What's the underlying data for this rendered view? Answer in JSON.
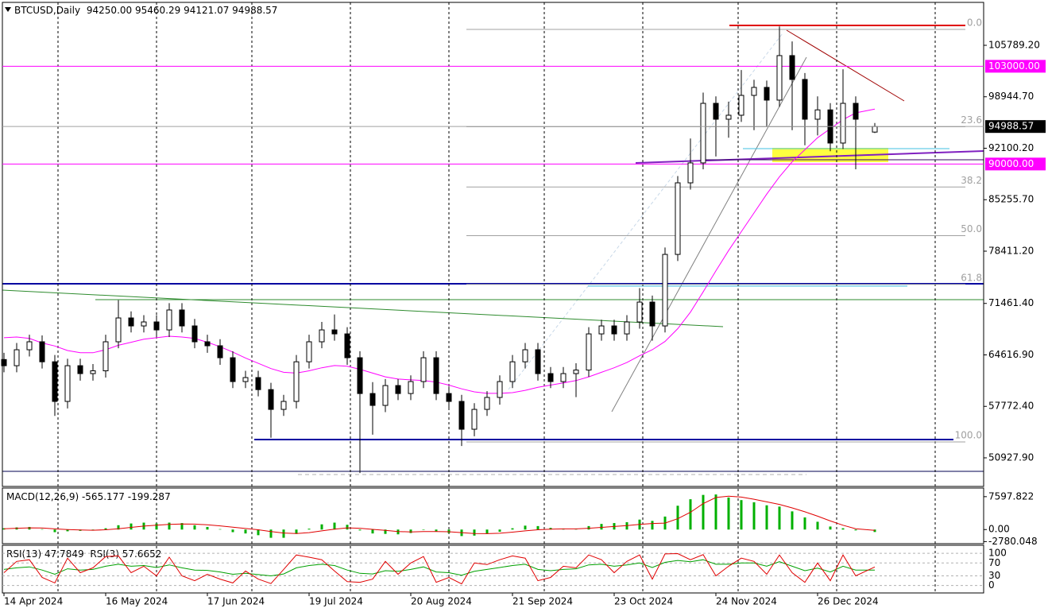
{
  "chart_data": {
    "type": "candlestick",
    "symbol": "BTCUSD,Daily",
    "ohlc_labels": [
      "94250.00",
      "95460.29",
      "94121.07",
      "94988.57"
    ],
    "x": [
      "2024-04-14",
      "2024-04-18",
      "2024-04-22",
      "2024-04-26",
      "2024-04-30",
      "2024-05-04",
      "2024-05-08",
      "2024-05-12",
      "2024-05-16",
      "2024-05-20",
      "2024-05-24",
      "2024-05-28",
      "2024-06-01",
      "2024-06-05",
      "2024-06-09",
      "2024-06-13",
      "2024-06-17",
      "2024-06-21",
      "2024-06-25",
      "2024-06-29",
      "2024-07-03",
      "2024-07-07",
      "2024-07-11",
      "2024-07-15",
      "2024-07-19",
      "2024-07-23",
      "2024-07-27",
      "2024-07-31",
      "2024-08-04",
      "2024-08-08",
      "2024-08-12",
      "2024-08-16",
      "2024-08-20",
      "2024-08-24",
      "2024-08-28",
      "2024-09-01",
      "2024-09-05",
      "2024-09-09",
      "2024-09-13",
      "2024-09-17",
      "2024-09-21",
      "2024-09-25",
      "2024-09-29",
      "2024-10-03",
      "2024-10-07",
      "2024-10-11",
      "2024-10-15",
      "2024-10-19",
      "2024-10-23",
      "2024-10-27",
      "2024-10-31",
      "2024-11-04",
      "2024-11-08",
      "2024-11-12",
      "2024-11-16",
      "2024-11-20",
      "2024-11-24",
      "2024-11-28",
      "2024-12-02",
      "2024-12-06",
      "2024-12-10",
      "2024-12-14",
      "2024-12-18",
      "2024-12-22",
      "2024-12-26",
      "2024-12-30",
      "2025-01-03",
      "2025-01-07",
      "2025-01-13"
    ],
    "ohlc": [
      [
        64000,
        64900,
        62300,
        63180
      ],
      [
        63180,
        66200,
        62300,
        65300
      ],
      [
        65300,
        67300,
        64400,
        66360
      ],
      [
        66360,
        67200,
        62800,
        63700
      ],
      [
        63700,
        64600,
        56500,
        58430
      ],
      [
        58430,
        64100,
        57500,
        63180
      ],
      [
        63180,
        64100,
        61200,
        62130
      ],
      [
        62130,
        63400,
        61200,
        62500
      ],
      [
        62500,
        67300,
        61600,
        66360
      ],
      [
        66360,
        71900,
        65500,
        69530
      ],
      [
        69530,
        70400,
        67600,
        68470
      ],
      [
        68470,
        69900,
        67600,
        69000
      ],
      [
        69000,
        69900,
        67000,
        67940
      ],
      [
        67940,
        71500,
        67000,
        70590
      ],
      [
        70590,
        71500,
        67600,
        68470
      ],
      [
        68470,
        69400,
        65500,
        66360
      ],
      [
        66360,
        67300,
        64900,
        65830
      ],
      [
        65830,
        66700,
        63300,
        64240
      ],
      [
        64240,
        65100,
        60200,
        61070
      ],
      [
        61070,
        62500,
        60200,
        61600
      ],
      [
        61600,
        62500,
        59100,
        60000
      ],
      [
        60000,
        60900,
        53600,
        57370
      ],
      [
        57370,
        59300,
        56500,
        58430
      ],
      [
        58430,
        64600,
        57500,
        63700
      ],
      [
        63700,
        67300,
        62800,
        66360
      ],
      [
        66360,
        69000,
        65500,
        67940
      ],
      [
        67940,
        70000,
        66500,
        67410
      ],
      [
        67410,
        68300,
        63300,
        64240
      ],
      [
        64240,
        65100,
        48900,
        59480
      ],
      [
        59480,
        61000,
        54000,
        57900
      ],
      [
        57900,
        61400,
        57000,
        60540
      ],
      [
        60540,
        61400,
        58600,
        59480
      ],
      [
        59480,
        61900,
        58600,
        61070
      ],
      [
        61070,
        65100,
        60200,
        64240
      ],
      [
        64240,
        65100,
        58600,
        59480
      ],
      [
        59480,
        60400,
        57500,
        58430
      ],
      [
        58430,
        59300,
        52500,
        54730
      ],
      [
        54730,
        58200,
        53800,
        57370
      ],
      [
        57370,
        59800,
        56500,
        58960
      ],
      [
        58960,
        61900,
        58000,
        61070
      ],
      [
        61070,
        64600,
        60200,
        63700
      ],
      [
        63700,
        66200,
        62800,
        65300
      ],
      [
        65300,
        66200,
        61200,
        62130
      ],
      [
        62130,
        63000,
        60200,
        61070
      ],
      [
        61070,
        63000,
        60200,
        62130
      ],
      [
        62130,
        63500,
        59000,
        62600
      ],
      [
        62600,
        68300,
        61700,
        67410
      ],
      [
        67410,
        69300,
        66500,
        68470
      ],
      [
        68470,
        69300,
        66500,
        67410
      ],
      [
        67410,
        69900,
        66500,
        69000
      ],
      [
        69000,
        73500,
        68100,
        71640
      ],
      [
        71640,
        72500,
        66500,
        68470
      ],
      [
        68470,
        78900,
        67600,
        77980
      ],
      [
        77980,
        88400,
        77100,
        87500
      ],
      [
        87500,
        93400,
        86600,
        90150
      ],
      [
        90150,
        99500,
        89300,
        98070
      ],
      [
        98070,
        99000,
        91000,
        95960
      ],
      [
        95960,
        98300,
        93500,
        96490
      ],
      [
        96490,
        102500,
        95600,
        99130
      ],
      [
        99130,
        101200,
        94500,
        100190
      ],
      [
        100190,
        101100,
        95000,
        98500
      ],
      [
        98500,
        108300,
        97600,
        104420
      ],
      [
        104420,
        106300,
        94500,
        101250
      ],
      [
        101250,
        102100,
        92500,
        95960
      ],
      [
        95960,
        99000,
        93800,
        97200
      ],
      [
        97200,
        98100,
        91700,
        92790
      ],
      [
        92790,
        102600,
        92000,
        98070
      ],
      [
        98070,
        99000,
        89300,
        95960
      ],
      [
        94250,
        95460.29,
        94121.07,
        94988.57
      ]
    ],
    "up_color": "#ffffff",
    "down_color": "#000000",
    "ma": {
      "color": "#ff00ff",
      "values": [
        66900,
        67000,
        66800,
        66200,
        65800,
        65200,
        64900,
        64900,
        65300,
        65900,
        66300,
        66700,
        66900,
        67100,
        67000,
        66800,
        66300,
        65700,
        65000,
        64200,
        63500,
        62800,
        62300,
        62200,
        62500,
        62900,
        63200,
        63100,
        62700,
        62200,
        61700,
        61400,
        61300,
        61200,
        61000,
        60600,
        60100,
        59700,
        59500,
        59500,
        59600,
        59900,
        60300,
        60600,
        60900,
        61200,
        61700,
        62300,
        62900,
        63600,
        64500,
        65300,
        66400,
        68100,
        70300,
        73000,
        75800,
        78500,
        81000,
        83500,
        86000,
        88300,
        90300,
        91900,
        93500,
        94700,
        95900,
        96800,
        97300
      ]
    },
    "xlim": [
      "2024-04-14",
      "2025-02-16"
    ],
    "xticks": [
      {
        "value": "2024-04-14",
        "label": "14 Apr 2024"
      },
      {
        "value": "2024-05-16",
        "label": "16 May 2024"
      },
      {
        "value": "2024-06-17",
        "label": "17 Jun 2024"
      },
      {
        "value": "2024-07-19",
        "label": "19 Jul 2024"
      },
      {
        "value": "2024-08-20",
        "label": "20 Aug 2024"
      },
      {
        "value": "2024-09-21",
        "label": "21 Sep 2024"
      },
      {
        "value": "2024-10-23",
        "label": "23 Oct 2024"
      },
      {
        "value": "2024-11-24",
        "label": "24 Nov 2024"
      },
      {
        "value": "2024-12-26",
        "label": "26 Dec 2024"
      }
    ],
    "xgrid": [
      "2024-05-01",
      "2024-06-01",
      "2024-07-01",
      "2024-08-01",
      "2024-09-01",
      "2024-10-01",
      "2024-11-01",
      "2024-12-01",
      "2025-01-01",
      "2025-02-01"
    ],
    "ylim": [
      47122,
      111497
    ],
    "yticks": [
      {
        "value": 105789.2,
        "label": "105789.20"
      },
      {
        "value": 98944.7,
        "label": "98944.70"
      },
      {
        "value": 92100.2,
        "label": "92100.20"
      },
      {
        "value": 85255.7,
        "label": "85255.70"
      },
      {
        "value": 78411.2,
        "label": "78411.20"
      },
      {
        "value": 71461.4,
        "label": "71461.40"
      },
      {
        "value": 64616.9,
        "label": "64616.90"
      },
      {
        "value": 57772.4,
        "label": "57772.40"
      },
      {
        "value": 50927.9,
        "label": "50927.90"
      }
    ],
    "levels": [
      {
        "value": 103000,
        "label": "103000.00",
        "color": "#ff00ff"
      },
      {
        "value": 90000,
        "label": "90000.00",
        "color": "#ff00ff"
      }
    ],
    "fib": {
      "high": 107900,
      "low": 53040,
      "color": "#a0a0a0",
      "levels": [
        {
          "value": 0,
          "label": "0.0"
        },
        {
          "value": 23.6,
          "label": "23.6"
        },
        {
          "value": 38.2,
          "label": "38.2"
        },
        {
          "value": 50,
          "label": "50.0"
        },
        {
          "value": 61.8,
          "label": "61.8"
        },
        {
          "value": 100,
          "label": "100.0"
        }
      ]
    },
    "macd": {
      "title": "MACD(12,26,9)",
      "color": "#00b000",
      "signal_color": "#e00000",
      "values": [
        300,
        500,
        600,
        100,
        -600,
        -400,
        -300,
        -200,
        300,
        1000,
        1400,
        1600,
        1400,
        1600,
        1500,
        1000,
        600,
        100,
        -600,
        -900,
        -1300,
        -1900,
        -1900,
        -1000,
        200,
        1200,
        1600,
        1100,
        -200,
        -900,
        -1000,
        -1100,
        -800,
        -100,
        -400,
        -800,
        -1500,
        -1400,
        -1000,
        -500,
        300,
        900,
        800,
        400,
        200,
        100,
        800,
        1300,
        1500,
        1700,
        2300,
        2000,
        3000,
        5500,
        7000,
        8000,
        8100,
        7400,
        6800,
        6300,
        5600,
        5300,
        4200,
        2800,
        1800,
        700,
        300,
        -200,
        -565.177
      ],
      "signal": [
        200,
        300,
        400,
        350,
        150,
        0,
        -100,
        -150,
        -50,
        200,
        500,
        800,
        1000,
        1200,
        1300,
        1250,
        1100,
        850,
        550,
        250,
        -50,
        -450,
        -800,
        -900,
        -700,
        -300,
        100,
        400,
        300,
        50,
        -200,
        -450,
        -550,
        -450,
        -450,
        -500,
        -700,
        -900,
        -950,
        -850,
        -600,
        -300,
        -50,
        100,
        150,
        150,
        300,
        500,
        700,
        900,
        1200,
        1400,
        1500,
        2500,
        4000,
        6000,
        7400,
        7700,
        7500,
        7000,
        6400,
        5800,
        5000,
        4100,
        3100,
        2000,
        1000,
        200,
        -199.287
      ],
      "ylim": [
        -3258,
        9589
      ],
      "yticks": [
        7597.822,
        {
          "value": 0,
          "label": "0.00"
        },
        -2780.048
      ]
    },
    "rsi": {
      "ylim": [
        -23,
        125
      ],
      "yticks": [
        100,
        70,
        30,
        0
      ],
      "series": [
        {
          "name": "RSI(13)",
          "color": "#00a000",
          "values": [
            50,
            55,
            58,
            48,
            35,
            52,
            48,
            50,
            60,
            66,
            60,
            62,
            56,
            64,
            55,
            48,
            47,
            42,
            35,
            38,
            34,
            30,
            36,
            55,
            62,
            66,
            62,
            48,
            38,
            36,
            46,
            44,
            50,
            58,
            42,
            40,
            32,
            44,
            50,
            56,
            62,
            66,
            50,
            46,
            50,
            52,
            64,
            66,
            60,
            64,
            70,
            56,
            72,
            78,
            74,
            80,
            66,
            66,
            70,
            70,
            60,
            74,
            60,
            46,
            54,
            42,
            60,
            48,
            47.7849
          ]
        },
        {
          "name": "RSI(3)",
          "color": "#e00000",
          "values": [
            40,
            75,
            80,
            25,
            8,
            85,
            40,
            55,
            90,
            92,
            40,
            60,
            30,
            88,
            30,
            15,
            35,
            20,
            8,
            45,
            20,
            6,
            50,
            95,
            88,
            80,
            45,
            12,
            10,
            20,
            75,
            35,
            70,
            90,
            10,
            25,
            5,
            70,
            65,
            80,
            92,
            85,
            15,
            25,
            60,
            55,
            95,
            80,
            40,
            75,
            95,
            20,
            98,
            99,
            80,
            96,
            30,
            60,
            85,
            75,
            35,
            95,
            40,
            10,
            70,
            15,
            95,
            30,
            57.6652
          ]
        }
      ]
    }
  }
}
